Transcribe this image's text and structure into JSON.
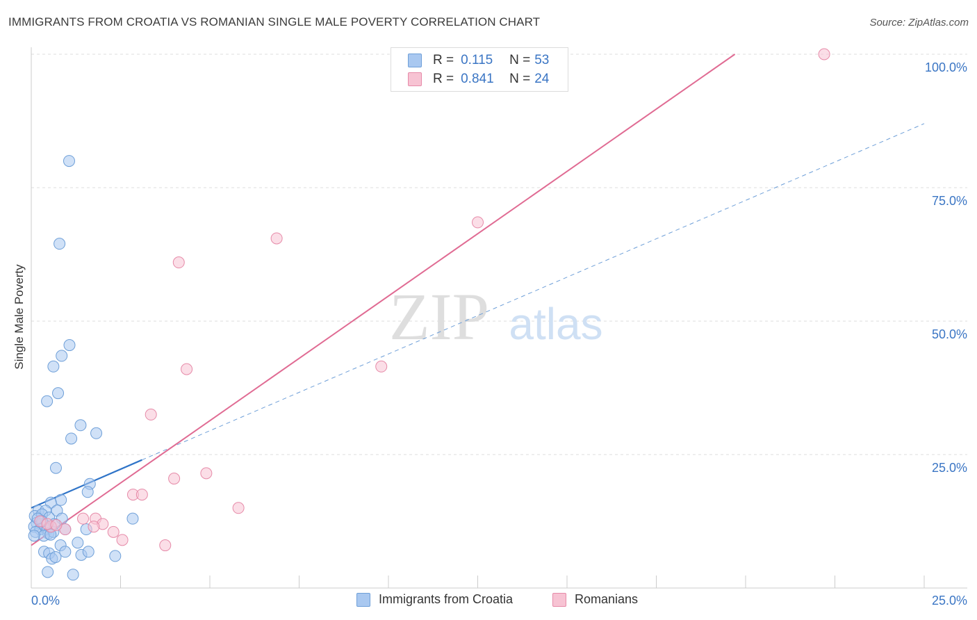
{
  "title": "IMMIGRANTS FROM CROATIA VS ROMANIAN SINGLE MALE POVERTY CORRELATION CHART",
  "source": "Source: ZipAtlas.com",
  "watermark": {
    "zip": "ZIP",
    "atlas": "atlas"
  },
  "legend": {
    "rows": [
      {
        "r_label": "R =",
        "r_value": "0.115",
        "n_label": "N =",
        "n_value": "53",
        "color": "#a9c8f0",
        "border": "#6e9fd8"
      },
      {
        "r_label": "R =",
        "r_value": "0.841",
        "n_label": "N =",
        "n_value": "24",
        "color": "#f7c3d3",
        "border": "#e68aa8"
      }
    ]
  },
  "bottom_legend": {
    "croatia": "Immigrants from Croatia",
    "romanians": "Romanians"
  },
  "chart_data": {
    "type": "scatter",
    "title": "IMMIGRANTS FROM CROATIA VS ROMANIAN SINGLE MALE POVERTY CORRELATION CHART",
    "xlabel": "",
    "ylabel": "Single Male Poverty",
    "xlim": [
      0,
      25
    ],
    "ylim": [
      0,
      100
    ],
    "x_tick_labels": {
      "left": "0.0%",
      "right": "25.0%"
    },
    "y_ticks": [
      25,
      50,
      75,
      100
    ],
    "y_tick_labels": [
      "25.0%",
      "50.0%",
      "75.0%",
      "100.0%"
    ],
    "grid": true,
    "series": [
      {
        "name": "Immigrants from Croatia",
        "color": "#6e9fd8",
        "fill": "#a9c8f0",
        "r": 0.115,
        "n": 53,
        "points": [
          [
            1.06,
            80.0
          ],
          [
            0.79,
            64.5
          ],
          [
            1.07,
            45.5
          ],
          [
            0.85,
            43.5
          ],
          [
            0.62,
            41.5
          ],
          [
            0.75,
            36.5
          ],
          [
            0.44,
            35.0
          ],
          [
            1.38,
            30.5
          ],
          [
            1.82,
            29.0
          ],
          [
            1.12,
            28.0
          ],
          [
            0.69,
            22.5
          ],
          [
            1.64,
            19.5
          ],
          [
            1.58,
            18.0
          ],
          [
            0.83,
            16.5
          ],
          [
            0.55,
            16.0
          ],
          [
            0.2,
            14.5
          ],
          [
            0.4,
            14.5
          ],
          [
            0.72,
            14.5
          ],
          [
            0.1,
            13.5
          ],
          [
            0.3,
            13.8
          ],
          [
            0.5,
            13.2
          ],
          [
            0.86,
            13.0
          ],
          [
            0.15,
            12.2
          ],
          [
            0.28,
            12.0
          ],
          [
            0.38,
            11.8
          ],
          [
            0.08,
            11.5
          ],
          [
            0.25,
            11.0
          ],
          [
            0.45,
            11.0
          ],
          [
            0.55,
            11.5
          ],
          [
            0.95,
            11.0
          ],
          [
            1.54,
            11.0
          ],
          [
            0.12,
            10.5
          ],
          [
            0.48,
            10.2
          ],
          [
            0.62,
            10.5
          ],
          [
            0.35,
            9.8
          ],
          [
            0.08,
            9.8
          ],
          [
            0.54,
            10.0
          ],
          [
            1.3,
            8.5
          ],
          [
            0.82,
            8.0
          ],
          [
            0.36,
            6.8
          ],
          [
            0.5,
            6.5
          ],
          [
            0.95,
            6.8
          ],
          [
            1.4,
            6.2
          ],
          [
            1.6,
            6.8
          ],
          [
            2.35,
            6.0
          ],
          [
            0.58,
            5.5
          ],
          [
            0.68,
            5.8
          ],
          [
            0.46,
            3.0
          ],
          [
            1.17,
            2.5
          ],
          [
            2.84,
            13.0
          ],
          [
            0.3,
            12.5
          ],
          [
            0.65,
            12.0
          ],
          [
            0.18,
            13.0
          ]
        ],
        "trend": {
          "x0": 0.0,
          "y0": 15.0,
          "x1": 3.1,
          "y1": 24.0,
          "dashed_to_x": 25.0,
          "dashed_to_y": 87.0
        }
      },
      {
        "name": "Romanians",
        "color": "#e68aa8",
        "fill": "#f7c3d3",
        "r": 0.841,
        "n": 24,
        "points": [
          [
            22.2,
            100.0
          ],
          [
            12.5,
            68.5
          ],
          [
            6.87,
            65.5
          ],
          [
            4.13,
            61.0
          ],
          [
            9.8,
            41.5
          ],
          [
            4.35,
            41.0
          ],
          [
            3.35,
            32.5
          ],
          [
            4.0,
            20.5
          ],
          [
            4.9,
            21.5
          ],
          [
            2.85,
            17.5
          ],
          [
            3.1,
            17.5
          ],
          [
            5.8,
            15.0
          ],
          [
            1.45,
            13.0
          ],
          [
            1.8,
            13.0
          ],
          [
            2.0,
            12.0
          ],
          [
            1.75,
            11.5
          ],
          [
            0.55,
            11.5
          ],
          [
            0.95,
            11.0
          ],
          [
            2.3,
            10.5
          ],
          [
            2.55,
            9.0
          ],
          [
            3.75,
            8.0
          ],
          [
            0.25,
            12.5
          ],
          [
            0.45,
            12.0
          ],
          [
            0.7,
            11.8
          ]
        ],
        "trend": {
          "x0": 0.0,
          "y0": 8.0,
          "x1": 19.7,
          "y1": 100.0
        }
      }
    ]
  }
}
